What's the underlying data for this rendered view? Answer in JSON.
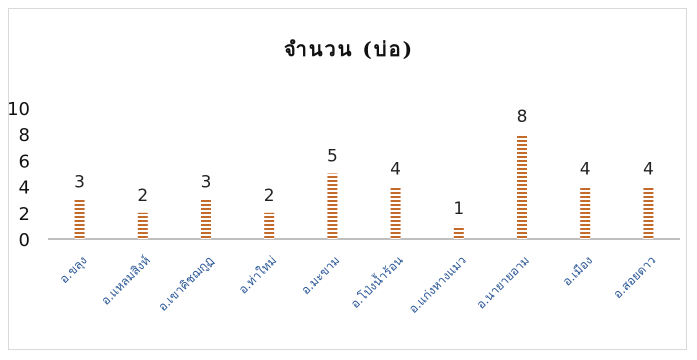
{
  "chart_data": {
    "type": "bar",
    "title": "จำนวน (บ่อ)",
    "categories": [
      "อ.ขลุง",
      "อ.แหลมสิงห์",
      "อ.เขาคิชฌกูฏ",
      "อ.ท่าใหม่",
      "อ.มะขาม",
      "อ.โป่งน้ำร้อน",
      "อ.แก่งหางแมว",
      "อ.นายายอาม",
      "อ.เมือง",
      "อ.สอยดาว"
    ],
    "values": [
      3,
      2,
      3,
      2,
      5,
      4,
      1,
      8,
      4,
      4
    ],
    "data_labels": [
      "3",
      "2",
      "3",
      "2",
      "5",
      "4",
      "1",
      "8",
      "4",
      "4"
    ],
    "y_ticks": [
      "0",
      "2",
      "4",
      "6",
      "8",
      "10"
    ],
    "ylim": [
      0,
      10
    ],
    "xlabel": "",
    "ylabel": "",
    "grid": false,
    "legend": false,
    "colors": {
      "bar_light": "#c46a2b",
      "bar_dark": "#ffffff",
      "axis": "#bfbfbf",
      "category_text": "#2b5797"
    }
  }
}
